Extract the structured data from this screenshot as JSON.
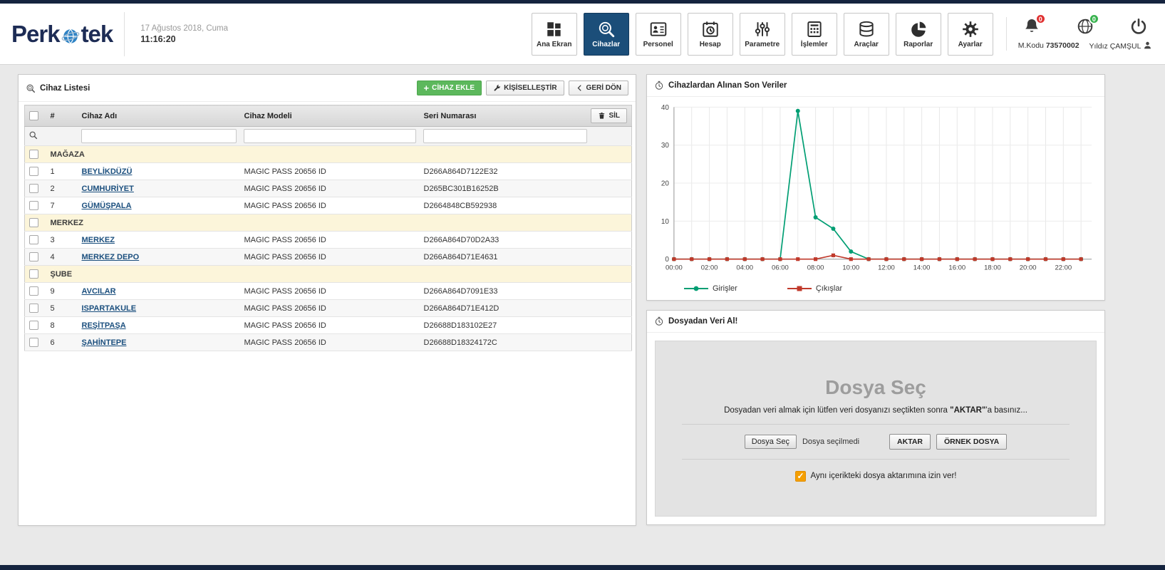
{
  "brand": {
    "text_left": "Perk",
    "text_right": "tek"
  },
  "header": {
    "date": "17 Ağustos 2018, Cuma",
    "time": "11:16:20",
    "nav": [
      {
        "label": "Ana Ekran",
        "icon": "grid",
        "active": false
      },
      {
        "label": "Cihazlar",
        "icon": "fingerprint-search",
        "active": true
      },
      {
        "label": "Personel",
        "icon": "id-card",
        "active": false
      },
      {
        "label": "Hesap",
        "icon": "calendar-clock",
        "active": false
      },
      {
        "label": "Parametre",
        "icon": "sliders",
        "active": false
      },
      {
        "label": "İşlemler",
        "icon": "calculator",
        "active": false
      },
      {
        "label": "Araçlar",
        "icon": "database",
        "active": false
      },
      {
        "label": "Raporlar",
        "icon": "pie-chart",
        "active": false
      },
      {
        "label": "Ayarlar",
        "icon": "gears",
        "active": false
      }
    ],
    "badges": {
      "bell": "0",
      "globe": "0"
    },
    "mkodu_label": "M.Kodu",
    "mkodu_value": "73570002",
    "user_name": "Yıldız ÇAMŞUL"
  },
  "device_list": {
    "title": "Cihaz Listesi",
    "buttons": {
      "add": "CİHAZ EKLE",
      "customize": "KİŞİSELLEŞTİR",
      "back": "GERİ DÖN",
      "delete": "SİL"
    },
    "columns": {
      "num": "#",
      "name": "Cihaz Adı",
      "model": "Cihaz Modeli",
      "serial": "Seri Numarası"
    },
    "groups": [
      {
        "name": "MAĞAZA",
        "rows": [
          {
            "num": "1",
            "name": "BEYLİKDÜZÜ",
            "model": "MAGIC PASS 20656 ID",
            "serial": "D266A864D7122E32"
          },
          {
            "num": "2",
            "name": "CUMHURİYET",
            "model": "MAGIC PASS 20656 ID",
            "serial": "D265BC301B16252B"
          },
          {
            "num": "7",
            "name": "GÜMÜŞPALA",
            "model": "MAGIC PASS 20656 ID",
            "serial": "D2664848CB592938"
          }
        ]
      },
      {
        "name": "MERKEZ",
        "rows": [
          {
            "num": "3",
            "name": "MERKEZ",
            "model": "MAGIC PASS 20656 ID",
            "serial": "D266A864D70D2A33"
          },
          {
            "num": "4",
            "name": "MERKEZ DEPO",
            "model": "MAGIC PASS 20656 ID",
            "serial": "D266A864D71E4631"
          }
        ]
      },
      {
        "name": "ŞUBE",
        "rows": [
          {
            "num": "9",
            "name": "AVCILAR",
            "model": "MAGIC PASS 20656 ID",
            "serial": "D266A864D7091E33"
          },
          {
            "num": "5",
            "name": "ISPARTAKULE",
            "model": "MAGIC PASS 20656 ID",
            "serial": "D266A864D71E412D"
          },
          {
            "num": "8",
            "name": "REŞİTPAŞA",
            "model": "MAGIC PASS 20656 ID",
            "serial": "D26688D183102E27"
          },
          {
            "num": "6",
            "name": "ŞAHİNTEPE",
            "model": "MAGIC PASS 20656 ID",
            "serial": "D26688D18324172C"
          }
        ]
      }
    ]
  },
  "chart_panel": {
    "title": "Cihazlardan Alınan Son Veriler"
  },
  "chart_data": {
    "type": "line",
    "x": [
      "00:00",
      "01:00",
      "02:00",
      "03:00",
      "04:00",
      "05:00",
      "06:00",
      "07:00",
      "08:00",
      "09:00",
      "10:00",
      "11:00",
      "12:00",
      "13:00",
      "14:00",
      "15:00",
      "16:00",
      "17:00",
      "18:00",
      "19:00",
      "20:00",
      "21:00",
      "22:00",
      "23:00"
    ],
    "xtick_every": 2,
    "series": [
      {
        "name": "Girişler",
        "color": "#009e73",
        "marker": "circle",
        "values": [
          0,
          0,
          0,
          0,
          0,
          0,
          0,
          39,
          11,
          8,
          2,
          0,
          0,
          0,
          0,
          0,
          0,
          0,
          0,
          0,
          0,
          0,
          0,
          0
        ]
      },
      {
        "name": "Çıkışlar",
        "color": "#c0392b",
        "marker": "square",
        "values": [
          0,
          0,
          0,
          0,
          0,
          0,
          0,
          0,
          0,
          1,
          0,
          0,
          0,
          0,
          0,
          0,
          0,
          0,
          0,
          0,
          0,
          0,
          0,
          0
        ]
      }
    ],
    "ylim": [
      0,
      40
    ],
    "yticks": [
      0,
      10,
      20,
      30,
      40
    ],
    "grid": true,
    "legend_position": "bottom"
  },
  "import_panel": {
    "title": "Dosyadan Veri Al!",
    "heading": "Dosya Seç",
    "instruction_pre": "Dosyadan veri almak için lütfen veri dosyanızı seçtikten sonra ",
    "instruction_bold": "\"AKTAR\"",
    "instruction_post": "'a basınız...",
    "file_button": "Dosya Seç",
    "file_status": "Dosya seçilmedi",
    "transfer_button": "AKTAR",
    "sample_button": "ÖRNEK DOSYA",
    "checkbox_label": "Aynı içerikteki dosya aktarımına izin ver!",
    "checkbox_checked": true
  }
}
